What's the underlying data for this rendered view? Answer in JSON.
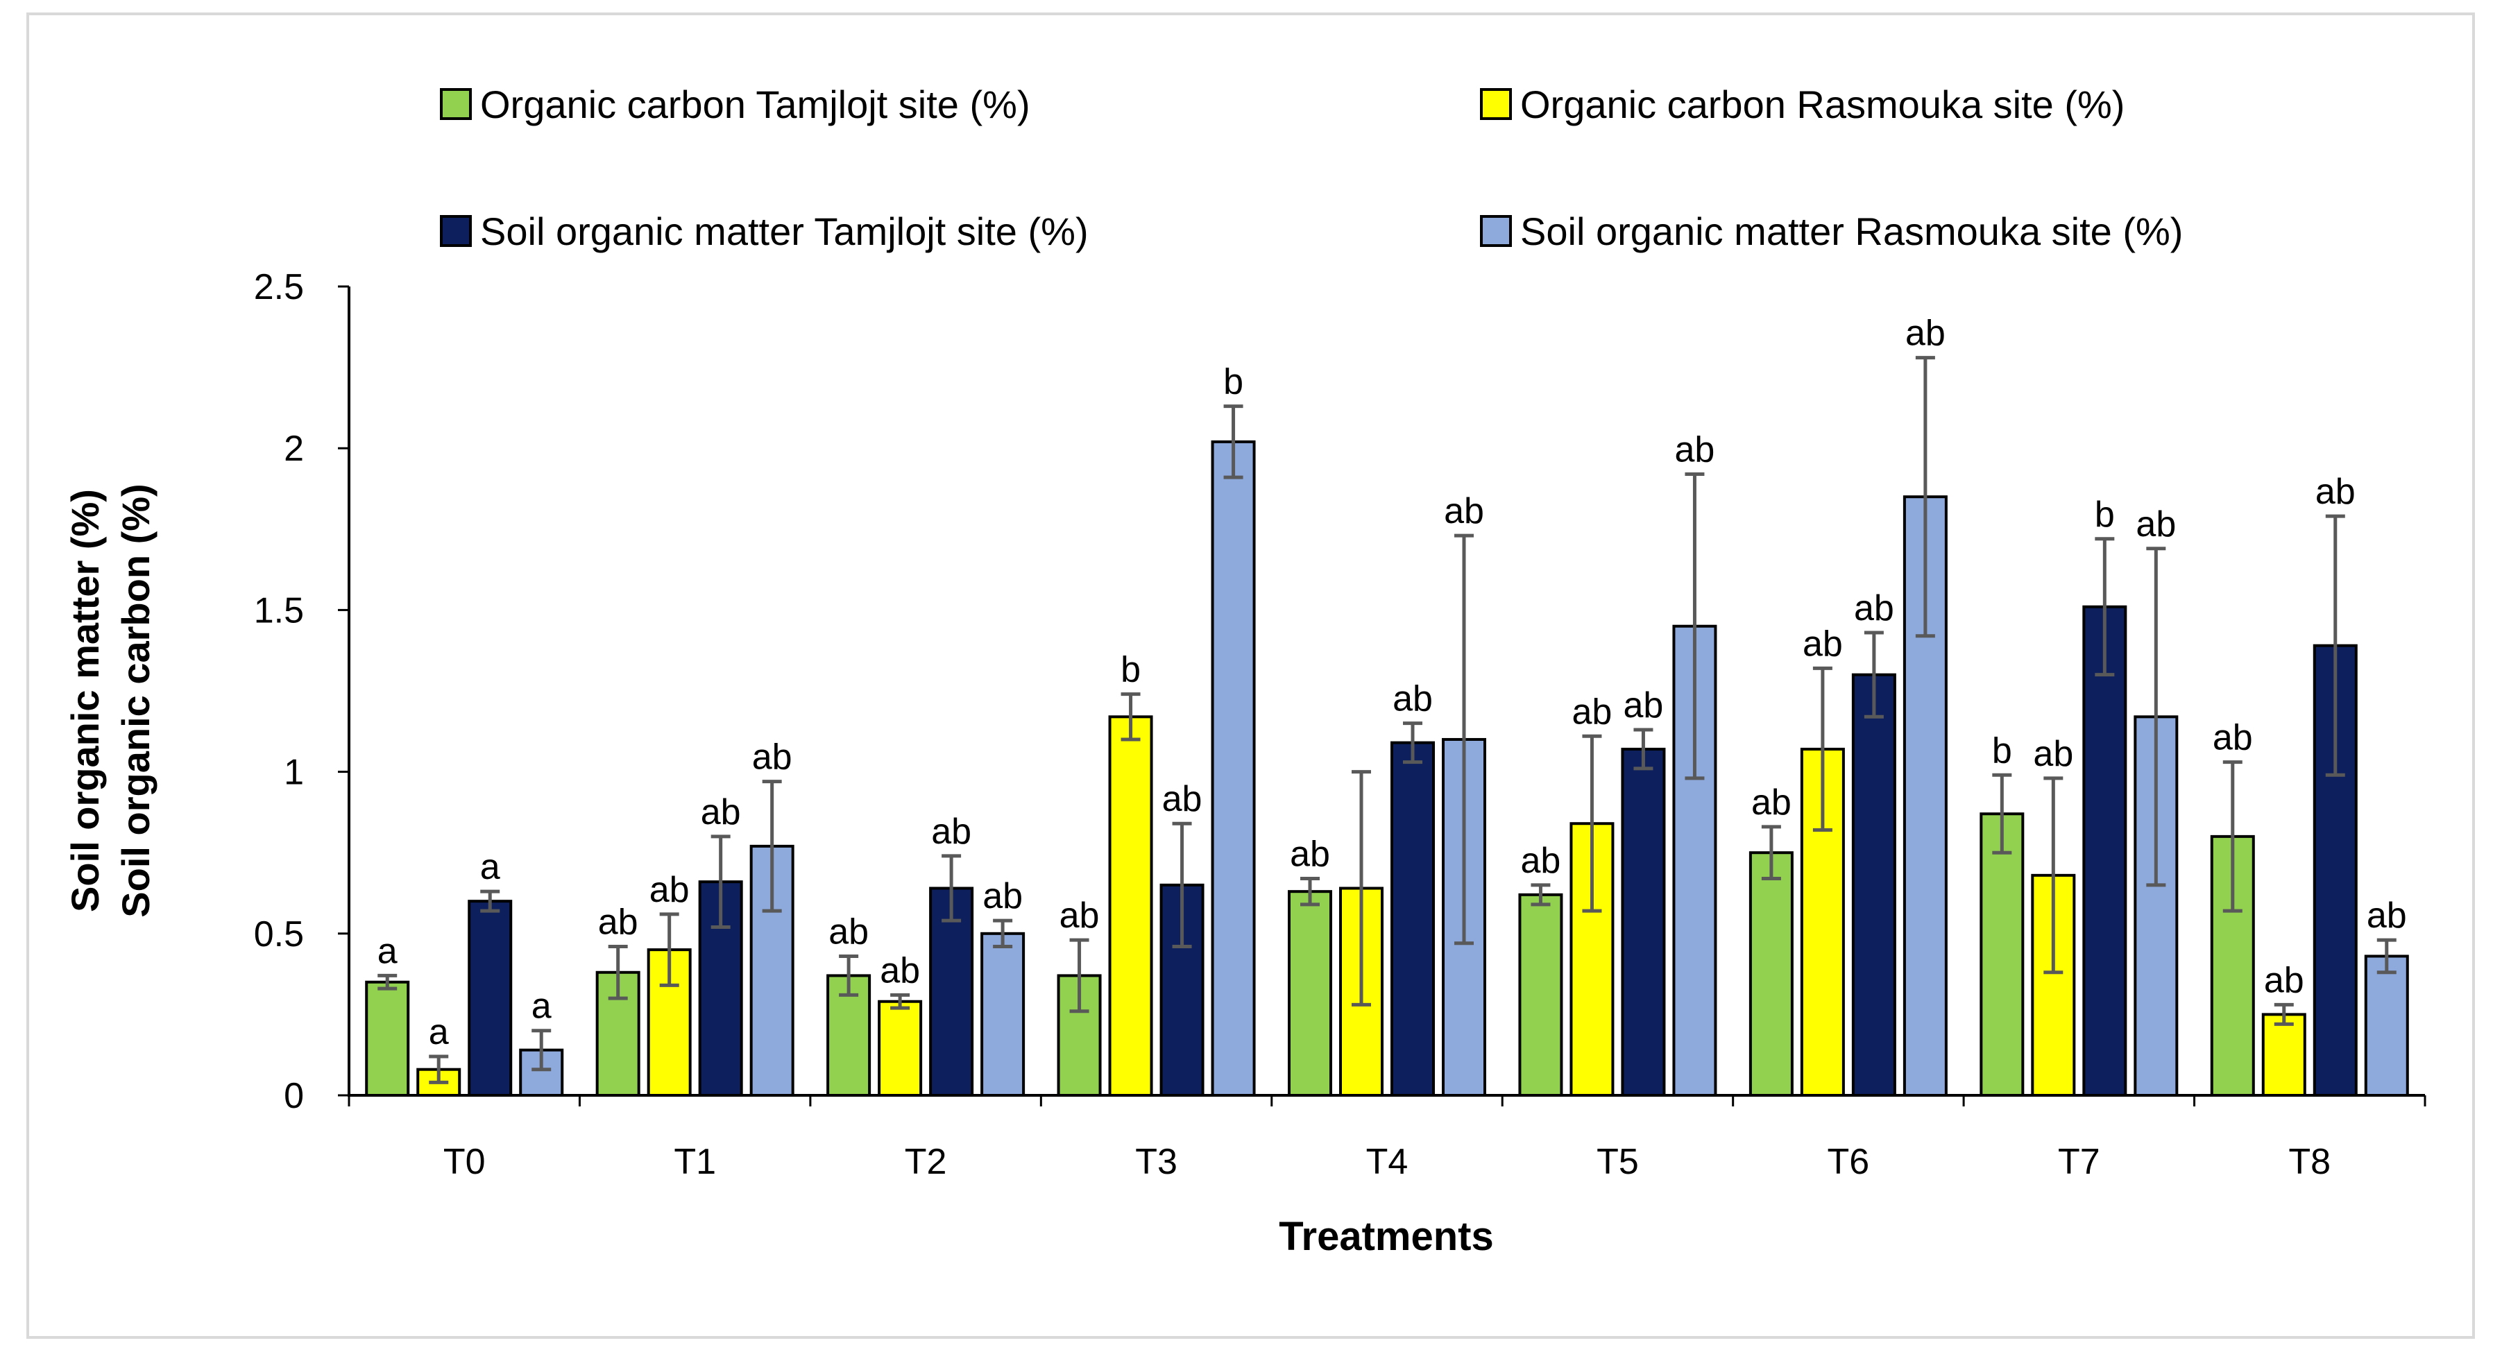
{
  "chart_data": {
    "type": "bar",
    "xlabel": "Treatments",
    "ylabel_lines": [
      "Soil organic matter (%)",
      "Soil organic carbon (%)"
    ],
    "ylim": [
      0,
      2.5
    ],
    "yticks": [
      0,
      0.5,
      1,
      1.5,
      2,
      2.5
    ],
    "ytick_labels": [
      "0",
      "0.5",
      "1",
      "1.5",
      "2",
      "2.5"
    ],
    "grid": false,
    "legend_position": "top",
    "categories": [
      "T0",
      "T1",
      "T2",
      "T3",
      "T4",
      "T5",
      "T6",
      "T7",
      "T8"
    ],
    "series": [
      {
        "name": "Organic carbon Tamjlojt site (%)",
        "color": "#92D050",
        "values": [
          0.35,
          0.38,
          0.37,
          0.37,
          0.63,
          0.62,
          0.75,
          0.87,
          0.8
        ],
        "errors": [
          0.02,
          0.08,
          0.06,
          0.11,
          0.04,
          0.03,
          0.08,
          0.12,
          0.23
        ],
        "letters": [
          "a",
          "ab",
          "ab",
          "ab",
          "ab",
          "ab",
          "ab",
          "b",
          "ab"
        ]
      },
      {
        "name": "Organic carbon Rasmouka site  (%)",
        "color": "#FFFF00",
        "values": [
          0.08,
          0.45,
          0.29,
          1.17,
          0.64,
          0.84,
          1.07,
          0.68,
          0.25
        ],
        "errors": [
          0.04,
          0.11,
          0.02,
          0.07,
          0.36,
          0.27,
          0.25,
          0.3,
          0.03
        ],
        "letters": [
          "a",
          "ab",
          "ab",
          "b",
          "",
          "ab",
          "ab",
          "ab",
          "ab"
        ]
      },
      {
        "name": "Soil organic matter Tamjlojt site (%)",
        "color": "#0D1F5C",
        "values": [
          0.6,
          0.66,
          0.64,
          0.65,
          1.09,
          1.07,
          1.3,
          1.51,
          1.39
        ],
        "errors": [
          0.03,
          0.14,
          0.1,
          0.19,
          0.06,
          0.06,
          0.13,
          0.21,
          0.4
        ],
        "letters": [
          "a",
          "ab",
          "ab",
          "ab",
          "ab",
          "ab",
          "ab",
          "b",
          "ab"
        ]
      },
      {
        "name": "Soil organic matter Rasmouka site (%)",
        "color": "#8EA9DB",
        "values": [
          0.14,
          0.77,
          0.5,
          2.02,
          1.1,
          1.45,
          1.85,
          1.17,
          0.43
        ],
        "errors": [
          0.06,
          0.2,
          0.04,
          0.11,
          0.63,
          0.47,
          0.43,
          0.52,
          0.05
        ],
        "letters": [
          "a",
          "ab",
          "ab",
          "b",
          "ab",
          "ab",
          "ab",
          "ab",
          "ab"
        ]
      }
    ]
  }
}
